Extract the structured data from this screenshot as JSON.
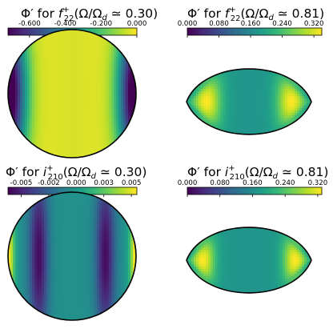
{
  "colormap": "viridis",
  "colormap_stops": [
    "#440154",
    "#482878",
    "#3e4989",
    "#31688e",
    "#26828e",
    "#1f9e89",
    "#35b779",
    "#6ece58",
    "#b5de2b",
    "#fde725"
  ],
  "outline_color": "#000000",
  "chart_data": [
    {
      "type": "heatmap",
      "title": {
        "pre": "Φ′ for ",
        "sym": "f",
        "sup": "+",
        "sub": "22",
        "post": "(Ω/Ω",
        "post_sub": "d",
        "tail": " ≃ 0.30)"
      },
      "quantity": "Φ′",
      "mode": "f22+",
      "ratio": 0.3,
      "shape": "near-circle",
      "colorbar": {
        "min": -0.72,
        "max": 0.0,
        "ticks": [
          "-0.600",
          "-0.400",
          "-0.200",
          "0.000"
        ],
        "tick_values": [
          -0.6,
          -0.4,
          -0.2,
          0.0
        ]
      },
      "field": {
        "pattern": "two-minima-at-left-and-right-edges",
        "value_range": [
          -0.72,
          0.0
        ]
      }
    },
    {
      "type": "heatmap",
      "title": {
        "pre": "Φ′ for ",
        "sym": "f",
        "sup": "+",
        "sub": "22",
        "post": "(Ω/Ω",
        "post_sub": "d",
        "tail": " ≃ 0.81)"
      },
      "quantity": "Φ′",
      "mode": "f22+",
      "ratio": 0.81,
      "shape": "lens-flattened",
      "colorbar": {
        "min": 0.0,
        "max": 0.34,
        "ticks": [
          "0.000",
          "0.080",
          "0.160",
          "0.240",
          "0.320"
        ],
        "tick_values": [
          0.0,
          0.08,
          0.16,
          0.24,
          0.32
        ]
      },
      "field": {
        "pattern": "two-maxima-near-left-and-right-tips",
        "value_range": [
          0.0,
          0.34
        ]
      }
    },
    {
      "type": "heatmap",
      "title": {
        "pre": "Φ′ for ",
        "sym": "i",
        "sup": "+",
        "sub": "210",
        "post": "(Ω/Ω",
        "post_sub": "d",
        "tail": " ≃ 0.30)"
      },
      "quantity": "Φ′",
      "mode": "i210+",
      "ratio": 0.3,
      "shape": "near-circle",
      "colorbar": {
        "min": -0.0062,
        "max": 0.0055,
        "ticks": [
          "-0.005",
          "-0.002",
          "0.000",
          "0.003",
          "0.005"
        ],
        "tick_values": [
          -0.005,
          -0.0025,
          0.0,
          0.0025,
          0.005
        ]
      },
      "field": {
        "pattern": "two-vertical-minima-bands-and-edge-maxima",
        "value_range": [
          -0.0062,
          0.0055
        ]
      }
    },
    {
      "type": "heatmap",
      "title": {
        "pre": "Φ′ for ",
        "sym": "i",
        "sup": "+",
        "sub": "210",
        "post": "(Ω/Ω",
        "post_sub": "d",
        "tail": " ≃ 0.81)"
      },
      "quantity": "Φ′",
      "mode": "i210+",
      "ratio": 0.81,
      "shape": "lens-flattened",
      "colorbar": {
        "min": 0.0,
        "max": 0.33,
        "ticks": [
          "0.000",
          "0.080",
          "0.160",
          "0.240",
          "0.320"
        ],
        "tick_values": [
          0.0,
          0.08,
          0.16,
          0.24,
          0.32
        ]
      },
      "field": {
        "pattern": "two-maxima-near-left-and-right-tips",
        "value_range": [
          0.0,
          0.33
        ]
      }
    }
  ]
}
